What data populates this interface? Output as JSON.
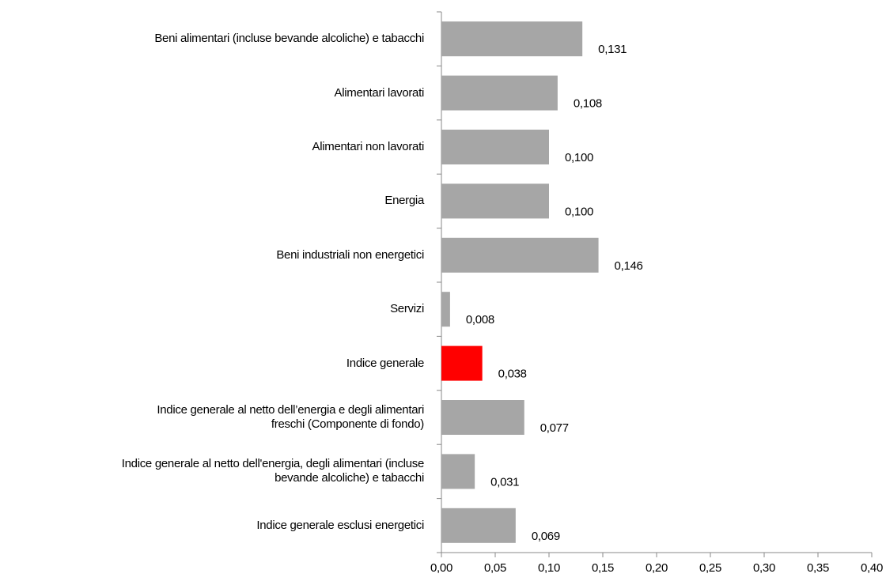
{
  "chart_data": {
    "type": "barh",
    "categories": [
      "Beni alimentari (incluse bevande alcoliche) e tabacchi",
      "Alimentari lavorati",
      "Alimentari non lavorati",
      "Energia",
      "Beni industriali non energetici",
      "Servizi",
      "Indice generale",
      "Indice generale  al netto  dell’energia  e degli alimentari\nfreschi  (Componente  di fondo)",
      "Indice generale al netto dell'energia, degli alimentari (incluse\nbevande alcoliche) e tabacchi",
      "Indice generale esclusi energetici"
    ],
    "values": [
      0.131,
      0.108,
      0.1,
      0.1,
      0.146,
      0.008,
      0.038,
      0.077,
      0.031,
      0.069
    ],
    "value_labels": [
      "0,131",
      "0,108",
      "0,100",
      "0,100",
      "0,146",
      "0,008",
      "0,038",
      "0,077",
      "0,031",
      "0,069"
    ],
    "colors": [
      "#a6a6a6",
      "#a6a6a6",
      "#a6a6a6",
      "#a6a6a6",
      "#a6a6a6",
      "#a6a6a6",
      "#ff0000",
      "#a6a6a6",
      "#a6a6a6",
      "#a6a6a6"
    ],
    "xlim": [
      0,
      0.4
    ],
    "xticks": [
      {
        "value": 0,
        "label": "0,00"
      },
      {
        "value": 0.05,
        "label": "0,05"
      },
      {
        "value": 0.1,
        "label": "0,10"
      },
      {
        "value": 0.15,
        "label": "0,15"
      },
      {
        "value": 0.2,
        "label": "0,20"
      },
      {
        "value": 0.25,
        "label": "0,25"
      },
      {
        "value": 0.3,
        "label": "0,30"
      },
      {
        "value": 0.35,
        "label": "0,35"
      },
      {
        "value": 0.4,
        "label": "0,40"
      }
    ],
    "grid": false
  }
}
